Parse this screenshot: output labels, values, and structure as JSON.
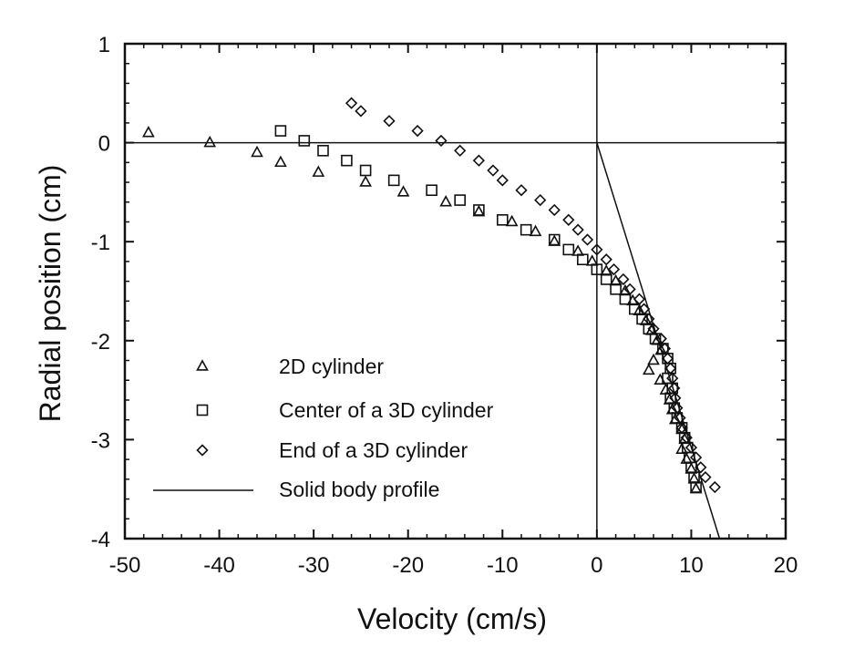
{
  "chart_data": {
    "type": "scatter",
    "xlabel": "Velocity (cm/s)",
    "ylabel": "Radial position (cm)",
    "xlim": [
      -50,
      20
    ],
    "ylim": [
      -4,
      1
    ],
    "x_ticks": [
      "-50",
      "-40",
      "-30",
      "-20",
      "-10",
      "0",
      "10",
      "20"
    ],
    "y_ticks": [
      "1",
      "0",
      "-1",
      "-2",
      "-3",
      "-4"
    ],
    "legend_position": "lower-left",
    "reference_lines": {
      "x_zero": true,
      "y_zero": true
    },
    "series": [
      {
        "name": "2D cylinder",
        "marker": "triangle",
        "points": [
          [
            -47.5,
            0.1
          ],
          [
            -41.0,
            0.0
          ],
          [
            -36.0,
            -0.1
          ],
          [
            -33.5,
            -0.2
          ],
          [
            -29.5,
            -0.3
          ],
          [
            -24.5,
            -0.4
          ],
          [
            -20.5,
            -0.5
          ],
          [
            -16.0,
            -0.6
          ],
          [
            -12.5,
            -0.7
          ],
          [
            -9.0,
            -0.8
          ],
          [
            -6.5,
            -0.9
          ],
          [
            -4.5,
            -1.0
          ],
          [
            -2.0,
            -1.1
          ],
          [
            -0.5,
            -1.2
          ],
          [
            1.0,
            -1.3
          ],
          [
            2.0,
            -1.4
          ],
          [
            3.0,
            -1.5
          ],
          [
            3.8,
            -1.6
          ],
          [
            4.5,
            -1.7
          ],
          [
            5.2,
            -1.8
          ],
          [
            5.8,
            -1.9
          ],
          [
            6.4,
            -2.0
          ],
          [
            6.8,
            -2.1
          ],
          [
            6.0,
            -2.2
          ],
          [
            5.5,
            -2.3
          ],
          [
            6.7,
            -2.4
          ],
          [
            7.3,
            -2.5
          ],
          [
            7.7,
            -2.6
          ],
          [
            8.0,
            -2.7
          ],
          [
            8.3,
            -2.8
          ],
          [
            9.0,
            -2.9
          ],
          [
            9.3,
            -3.0
          ],
          [
            9.0,
            -3.1
          ],
          [
            9.5,
            -3.2
          ],
          [
            10.0,
            -3.3
          ],
          [
            10.3,
            -3.4
          ],
          [
            10.5,
            -3.5
          ]
        ]
      },
      {
        "name": "Center of a 3D cylinder",
        "marker": "square",
        "points": [
          [
            -33.5,
            0.12
          ],
          [
            -31.0,
            0.02
          ],
          [
            -29.0,
            -0.08
          ],
          [
            -26.5,
            -0.18
          ],
          [
            -24.5,
            -0.28
          ],
          [
            -21.5,
            -0.38
          ],
          [
            -17.5,
            -0.48
          ],
          [
            -14.5,
            -0.58
          ],
          [
            -12.5,
            -0.68
          ],
          [
            -10.0,
            -0.78
          ],
          [
            -7.5,
            -0.88
          ],
          [
            -4.5,
            -0.98
          ],
          [
            -3.0,
            -1.08
          ],
          [
            -1.5,
            -1.18
          ],
          [
            0.0,
            -1.28
          ],
          [
            1.0,
            -1.38
          ],
          [
            2.0,
            -1.48
          ],
          [
            3.0,
            -1.58
          ],
          [
            4.0,
            -1.68
          ],
          [
            4.8,
            -1.78
          ],
          [
            5.5,
            -1.88
          ],
          [
            6.2,
            -1.98
          ],
          [
            7.0,
            -2.08
          ],
          [
            7.5,
            -2.18
          ],
          [
            7.8,
            -2.28
          ],
          [
            7.5,
            -2.38
          ],
          [
            8.0,
            -2.48
          ],
          [
            7.8,
            -2.58
          ],
          [
            8.2,
            -2.68
          ],
          [
            8.5,
            -2.78
          ],
          [
            9.0,
            -2.88
          ],
          [
            9.3,
            -2.98
          ],
          [
            9.6,
            -3.08
          ],
          [
            9.8,
            -3.18
          ],
          [
            10.0,
            -3.28
          ],
          [
            10.3,
            -3.38
          ],
          [
            10.5,
            -3.48
          ]
        ]
      },
      {
        "name": "End of a 3D cylinder",
        "marker": "diamond",
        "points": [
          [
            -26.0,
            0.4
          ],
          [
            -25.0,
            0.32
          ],
          [
            -22.0,
            0.22
          ],
          [
            -19.0,
            0.12
          ],
          [
            -16.5,
            0.02
          ],
          [
            -14.5,
            -0.08
          ],
          [
            -12.5,
            -0.18
          ],
          [
            -11.0,
            -0.28
          ],
          [
            -10.0,
            -0.38
          ],
          [
            -8.0,
            -0.48
          ],
          [
            -6.0,
            -0.58
          ],
          [
            -4.5,
            -0.68
          ],
          [
            -3.0,
            -0.78
          ],
          [
            -2.0,
            -0.88
          ],
          [
            -1.0,
            -0.98
          ],
          [
            0.0,
            -1.08
          ],
          [
            1.0,
            -1.18
          ],
          [
            1.8,
            -1.28
          ],
          [
            2.8,
            -1.38
          ],
          [
            3.5,
            -1.48
          ],
          [
            4.5,
            -1.58
          ],
          [
            5.0,
            -1.68
          ],
          [
            5.5,
            -1.78
          ],
          [
            6.0,
            -1.88
          ],
          [
            6.8,
            -1.98
          ],
          [
            7.2,
            -2.08
          ],
          [
            7.5,
            -2.18
          ],
          [
            7.8,
            -2.28
          ],
          [
            8.0,
            -2.38
          ],
          [
            8.2,
            -2.48
          ],
          [
            8.3,
            -2.58
          ],
          [
            8.5,
            -2.68
          ],
          [
            8.8,
            -2.78
          ],
          [
            9.0,
            -2.88
          ],
          [
            9.5,
            -2.98
          ],
          [
            10.0,
            -3.08
          ],
          [
            10.5,
            -3.18
          ],
          [
            11.0,
            -3.28
          ],
          [
            11.5,
            -3.38
          ],
          [
            12.5,
            -3.48
          ]
        ]
      },
      {
        "name": "Solid body profile",
        "marker": "line",
        "points": [
          [
            0,
            0
          ],
          [
            13.0,
            -4.0
          ]
        ]
      }
    ]
  }
}
